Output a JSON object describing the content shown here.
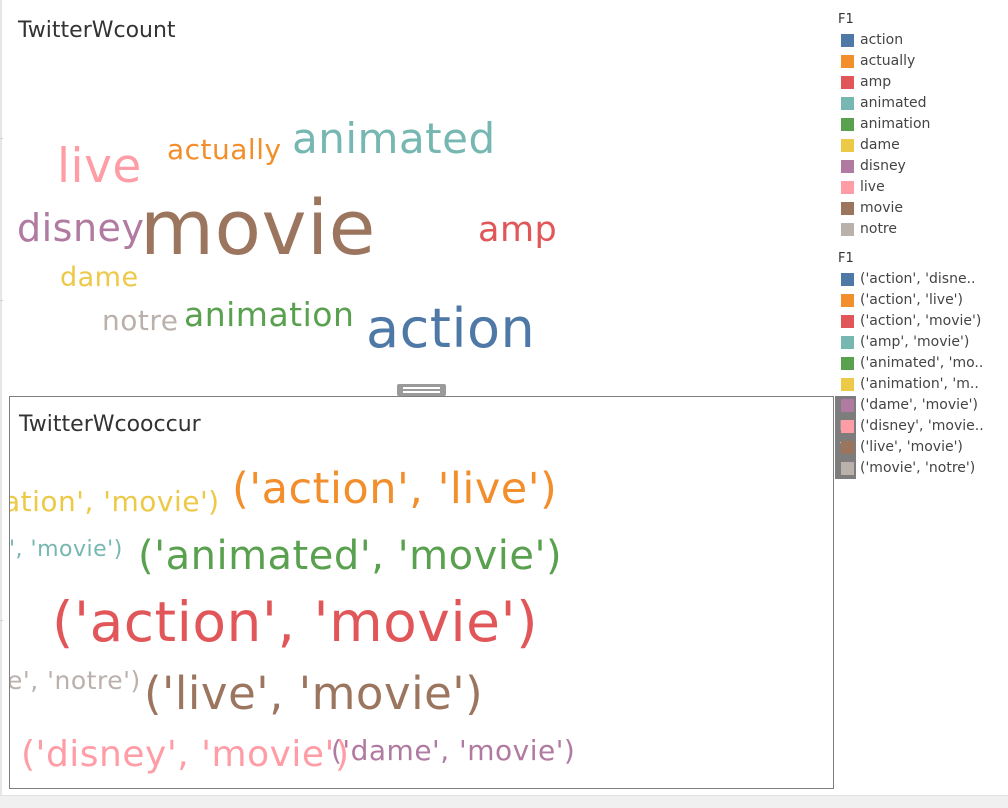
{
  "worksheet_count": {
    "title": "TwitterWcount",
    "words": [
      {
        "text": "movie",
        "color": "#9c755f"
      },
      {
        "text": "action",
        "color": "#4e79a7"
      },
      {
        "text": "animated",
        "color": "#76b7b2"
      },
      {
        "text": "live",
        "color": "#ff9da7"
      },
      {
        "text": "disney",
        "color": "#b07aa1"
      },
      {
        "text": "amp",
        "color": "#e15759"
      },
      {
        "text": "actually",
        "color": "#f28e2b"
      },
      {
        "text": "animation",
        "color": "#59a14f"
      },
      {
        "text": "dame",
        "color": "#edc948"
      },
      {
        "text": "notre",
        "color": "#bab0ac"
      }
    ]
  },
  "worksheet_cooccur": {
    "title": "TwitterWcooccur",
    "words": [
      {
        "text": "('action', 'movie')",
        "color": "#e15759"
      },
      {
        "text": "('action', 'live')",
        "color": "#f28e2b"
      },
      {
        "text": "('animated', 'movie')",
        "color": "#59a14f"
      },
      {
        "text": "('live', 'movie')",
        "color": "#9c755f"
      },
      {
        "text": "('disney', 'movie')",
        "color": "#ff9da7"
      },
      {
        "text": "('dame', 'movie')",
        "color": "#b07aa1"
      },
      {
        "text": "ation', 'movie')",
        "color": "#edc948"
      },
      {
        "text": "', 'movie')",
        "color": "#76b7b2"
      },
      {
        "text": "e', 'notre')",
        "color": "#bab0ac"
      }
    ]
  },
  "legend_count": {
    "title": "F1",
    "items": [
      {
        "label": "action",
        "color": "#4e79a7"
      },
      {
        "label": "actually",
        "color": "#f28e2b"
      },
      {
        "label": "amp",
        "color": "#e15759"
      },
      {
        "label": "animated",
        "color": "#76b7b2"
      },
      {
        "label": "animation",
        "color": "#59a14f"
      },
      {
        "label": "dame",
        "color": "#edc948"
      },
      {
        "label": "disney",
        "color": "#b07aa1"
      },
      {
        "label": "live",
        "color": "#ff9da7"
      },
      {
        "label": "movie",
        "color": "#9c755f"
      },
      {
        "label": "notre",
        "color": "#bab0ac"
      }
    ]
  },
  "legend_cooccur": {
    "title": "F1",
    "items": [
      {
        "label": "('action', 'disne..",
        "color": "#4e79a7"
      },
      {
        "label": "('action', 'live')",
        "color": "#f28e2b"
      },
      {
        "label": "('action', 'movie')",
        "color": "#e15759"
      },
      {
        "label": "('amp', 'movie')",
        "color": "#76b7b2"
      },
      {
        "label": "('animated', 'mo..",
        "color": "#59a14f"
      },
      {
        "label": "('animation', 'm..",
        "color": "#edc948"
      },
      {
        "label": "('dame', 'movie')",
        "color": "#b07aa1"
      },
      {
        "label": "('disney', 'movie..",
        "color": "#ff9da7"
      },
      {
        "label": "('live', 'movie')",
        "color": "#9c755f"
      },
      {
        "label": "('movie', 'notre')",
        "color": "#bab0ac"
      }
    ]
  },
  "toolbar": {
    "items": [
      {
        "icon": "close-icon",
        "glyph": "✕"
      },
      {
        "icon": "popout-icon",
        "glyph": "⇱"
      },
      {
        "icon": "filter-icon",
        "glyph": "⧩"
      },
      {
        "icon": "more-options-icon",
        "glyph": "▾"
      }
    ]
  }
}
